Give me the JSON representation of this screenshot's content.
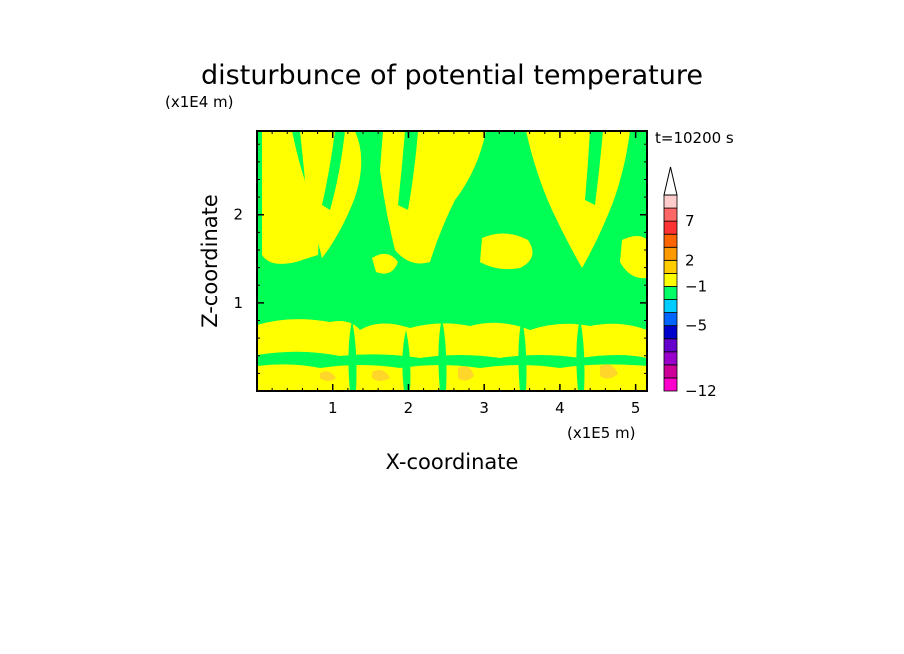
{
  "chart_data": {
    "type": "heatmap",
    "title": "disturbunce of potential temperature",
    "time_label": "t=10200 s",
    "xlabel": "X-coordinate",
    "ylabel": "Z-coordinate",
    "x_unit": "(x1E5 m)",
    "y_unit": "(x1E4 m)",
    "xlim": [
      0,
      5.15
    ],
    "ylim": [
      0,
      2.95
    ],
    "x_ticks": [
      1,
      2,
      3,
      4,
      5
    ],
    "y_ticks": [
      1,
      2
    ],
    "colorbar": {
      "tick_labels": [
        "7",
        "2",
        "−1",
        "−5",
        "−12"
      ],
      "colors_bottom_to_top": [
        "#ff00cc",
        "#cc0099",
        "#9900cc",
        "#6600cc",
        "#0000cc",
        "#0066ff",
        "#00ccff",
        "#00ff66",
        "#ffff00",
        "#ffcc00",
        "#ff9900",
        "#ff6600",
        "#ff3333",
        "#ff6666",
        "#ffcccc"
      ],
      "extends_top": true
    },
    "colors": {
      "background_field": "#00ff55",
      "positive_blob": "#ffff00",
      "warm_spot": "#ffcc33"
    }
  }
}
